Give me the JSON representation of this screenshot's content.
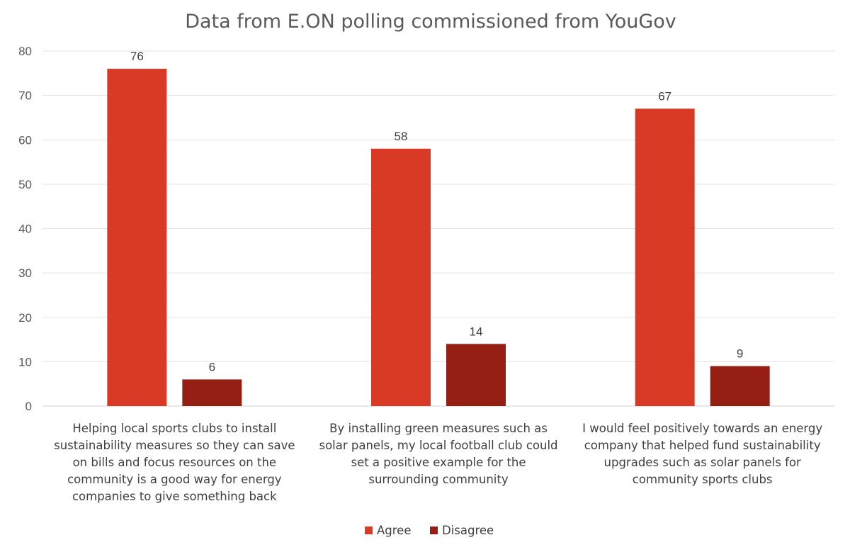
{
  "chart_data": {
    "type": "bar",
    "title": "Data from E.ON polling commissioned from YouGov",
    "xlabel": "",
    "ylabel": "",
    "ylim": [
      0,
      80
    ],
    "yticks": [
      0,
      10,
      20,
      30,
      40,
      50,
      60,
      70,
      80
    ],
    "grid": true,
    "legend_position": "bottom",
    "categories": [
      [
        "Helping local sports clubs to install",
        "sustainability measures so they can save",
        "on bills and focus resources on the",
        "community is a good way for energy",
        "companies to give something back"
      ],
      [
        "By installing green measures such as",
        "solar panels, my local football club could",
        "set a positive example for the",
        "surrounding community"
      ],
      [
        "I would feel positively towards an energy",
        "company that helped fund sustainability",
        "upgrades such as solar panels for",
        "community sports clubs"
      ]
    ],
    "series": [
      {
        "name": "Agree",
        "color": "#d93a26",
        "values": [
          76,
          58,
          67
        ]
      },
      {
        "name": "Disagree",
        "color": "#961f14",
        "values": [
          6,
          14,
          9
        ]
      }
    ]
  }
}
